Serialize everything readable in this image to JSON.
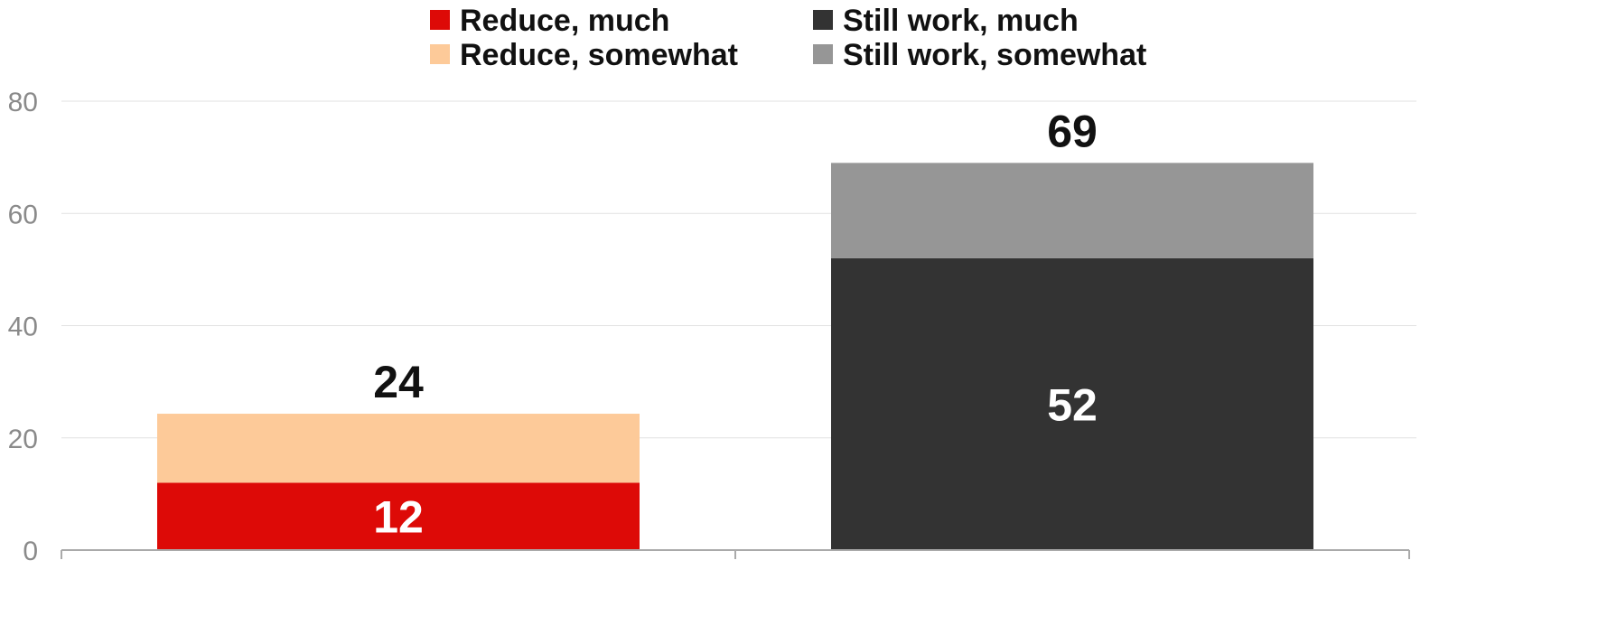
{
  "chart_data": {
    "type": "bar",
    "stacked": true,
    "ylim": [
      0,
      80
    ],
    "yticks": [
      0,
      20,
      40,
      60,
      80
    ],
    "grid": true,
    "legend_position": "top",
    "groups": [
      {
        "segments": [
          {
            "series": "Reduce, much",
            "value": 12,
            "label": "12"
          },
          {
            "series": "Reduce, somewhat",
            "value": 12.3
          }
        ],
        "total_label": "24"
      },
      {
        "segments": [
          {
            "series": "Still work, much",
            "value": 52,
            "label": "52"
          },
          {
            "series": "Still work, somewhat",
            "value": 17
          }
        ],
        "total_label": "69"
      }
    ],
    "series": [
      {
        "name": "Reduce, much",
        "color": "#dd0a07"
      },
      {
        "name": "Reduce, somewhat",
        "color": "#fdca99"
      },
      {
        "name": "Still work, much",
        "color": "#333333"
      },
      {
        "name": "Still work, somewhat",
        "color": "#969696"
      }
    ],
    "colors": {
      "grid": "#e2e2e2",
      "axis": "#aaaaaa",
      "tick_label": "#8a8a8a",
      "total_label": "#111111",
      "inner_label": "#ffffff"
    }
  }
}
